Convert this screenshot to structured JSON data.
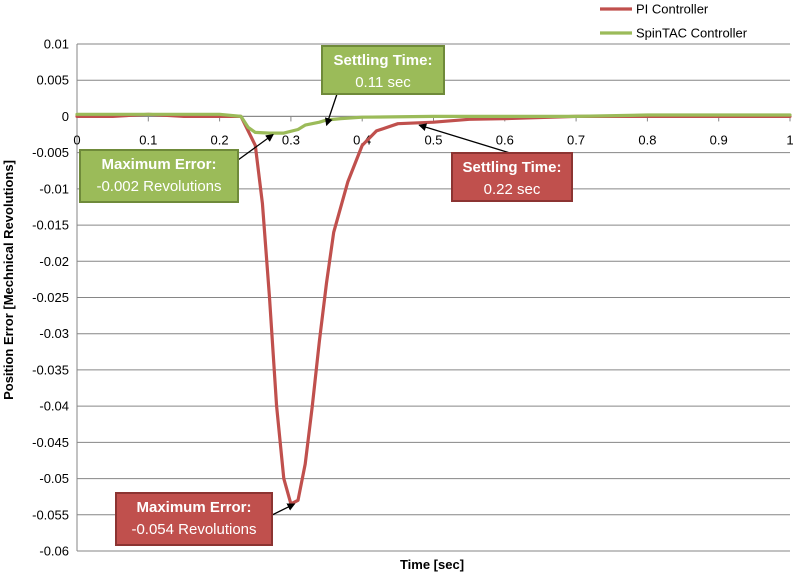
{
  "chart_data": {
    "type": "line",
    "title": "",
    "xlabel": "Time [sec]",
    "ylabel": "Position Error [Mechnical Revolutions]",
    "xlim": [
      0,
      1
    ],
    "ylim": [
      -0.06,
      0.01
    ],
    "x_ticks": [
      "0",
      "0.1",
      "0.2",
      "0.3",
      "0.4",
      "0.5",
      "0.6",
      "0.7",
      "0.8",
      "0.9",
      "1"
    ],
    "y_ticks": [
      "0.01",
      "0.005",
      "0",
      "-0.005",
      "-0.01",
      "-0.015",
      "-0.02",
      "-0.025",
      "-0.03",
      "-0.035",
      "-0.04",
      "-0.045",
      "-0.05",
      "-0.055",
      "-0.06"
    ],
    "grid": {
      "horizontal": true,
      "vertical": false
    },
    "legend_position": "top-right",
    "series": [
      {
        "name": "PI Controller",
        "color": "#c0504d",
        "x": [
          0,
          0.05,
          0.1,
          0.15,
          0.2,
          0.23,
          0.25,
          0.26,
          0.27,
          0.28,
          0.29,
          0.3,
          0.31,
          0.32,
          0.33,
          0.34,
          0.35,
          0.36,
          0.38,
          0.4,
          0.42,
          0.45,
          0.5,
          0.55,
          0.6,
          0.7,
          0.8,
          0.9,
          1.0
        ],
        "y": [
          0,
          0,
          0.0003,
          0,
          0,
          0,
          -0.004,
          -0.012,
          -0.025,
          -0.04,
          -0.05,
          -0.0535,
          -0.053,
          -0.048,
          -0.04,
          -0.031,
          -0.023,
          -0.016,
          -0.009,
          -0.004,
          -0.002,
          -0.001,
          -0.0008,
          -0.0004,
          -0.0003,
          0,
          0,
          0,
          0
        ]
      },
      {
        "name": "SpinTAC Controller",
        "color": "#9bbb59",
        "x": [
          0,
          0.05,
          0.1,
          0.15,
          0.2,
          0.23,
          0.24,
          0.25,
          0.27,
          0.29,
          0.31,
          0.32,
          0.34,
          0.35,
          0.37,
          0.4,
          0.5,
          0.6,
          0.7,
          0.8,
          0.9,
          1.0
        ],
        "y": [
          0.0003,
          0.0003,
          0.0003,
          0.0003,
          0.0003,
          0,
          -0.0015,
          -0.0022,
          -0.0023,
          -0.0023,
          -0.0018,
          -0.0012,
          -0.0008,
          -0.0005,
          -0.0003,
          -0.0001,
          0,
          0,
          0,
          0.0002,
          0.0002,
          0.0002
        ]
      }
    ],
    "annotations": [
      {
        "id": "si-settle",
        "title": "Settling Time:",
        "body": "0.11 sec",
        "color": "#9bbb59",
        "border": "#6f8a3a",
        "target": [
          0.35,
          -0.0012
        ]
      },
      {
        "id": "si-maxerr",
        "title": "Maximum Error:",
        "body": "-0.002 Revolutions",
        "color": "#9bbb59",
        "border": "#6f8a3a",
        "target": [
          0.275,
          -0.0025
        ]
      },
      {
        "id": "pi-settle",
        "title": "Settling Time:",
        "body": "0.22 sec",
        "color": "#c0504d",
        "border": "#8c3432",
        "target": [
          0.48,
          -0.0012
        ]
      },
      {
        "id": "pi-maxerr",
        "title": "Maximum Error:",
        "body": "-0.054 Revolutions",
        "color": "#c0504d",
        "border": "#8c3432",
        "target": [
          0.305,
          -0.0535
        ]
      }
    ]
  }
}
